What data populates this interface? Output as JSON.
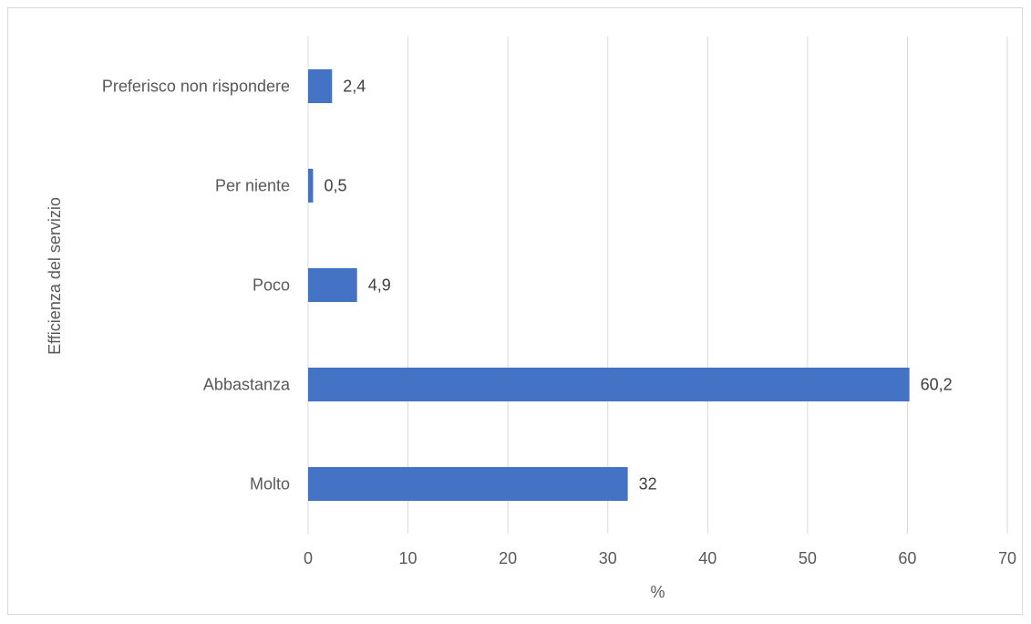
{
  "chart_data": {
    "type": "bar",
    "orientation": "horizontal",
    "categories": [
      "Preferisco non rispondere",
      "Per niente",
      "Poco",
      "Abbastanza",
      "Molto"
    ],
    "values": [
      2.4,
      0.5,
      4.9,
      60.2,
      32
    ],
    "value_labels": [
      "2,4",
      "0,5",
      "4,9",
      "60,2",
      "32"
    ],
    "title": "",
    "xlabel": "%",
    "ylabel": "Efficienza del servizio",
    "xlim": [
      0,
      70
    ],
    "x_ticks": [
      0,
      10,
      20,
      30,
      40,
      50,
      60,
      70
    ],
    "x_tick_labels": [
      "0",
      "10",
      "20",
      "30",
      "40",
      "50",
      "60",
      "70"
    ],
    "grid": "vertical",
    "legend": "none",
    "bar_color": "#4472c4",
    "grid_color": "#d9d9d9"
  }
}
